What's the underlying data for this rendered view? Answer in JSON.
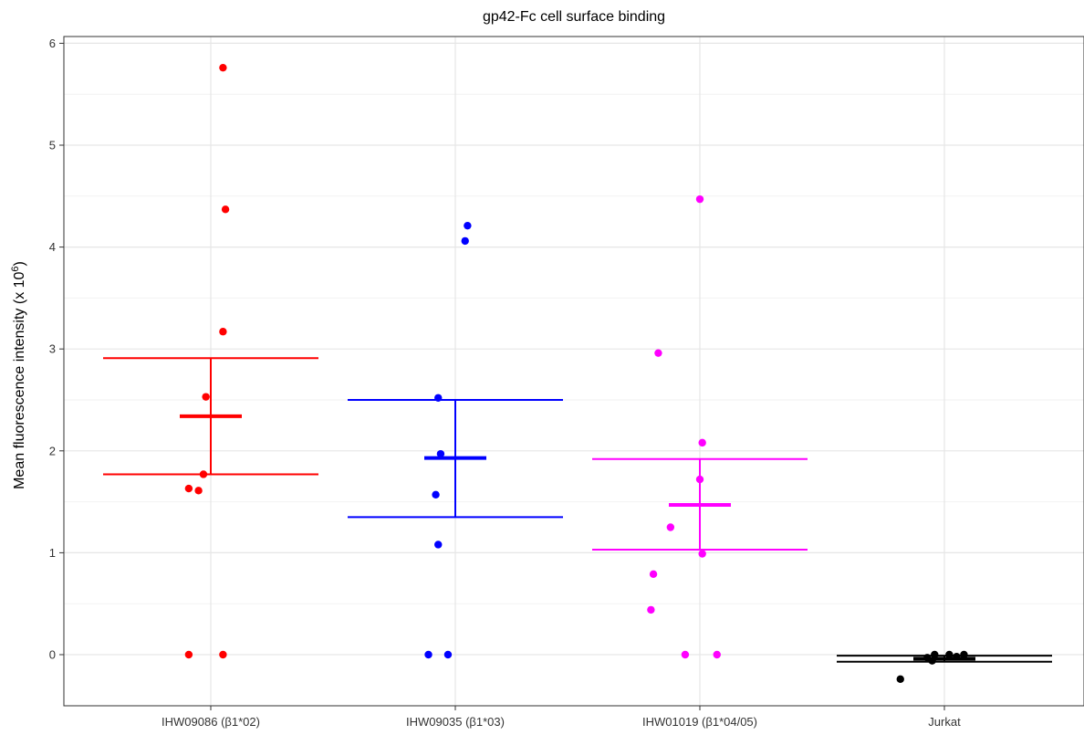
{
  "chart_data": {
    "type": "scatter",
    "title": "gp42-Fc cell surface binding",
    "xlabel": "",
    "ylabel_main": "Mean fluorescence intensity (x 10",
    "ylabel_sup": "6",
    "ylabel_close": ")",
    "ylim": [
      -0.5,
      6.1
    ],
    "yticks": [
      "0",
      "1",
      "2",
      "3",
      "4",
      "5",
      "6"
    ],
    "grid": true,
    "categories": [
      "IHW09086 (β1*02)",
      "IHW09035 (β1*03)",
      "IHW01019 (β1*04/05)",
      "Jurkat"
    ],
    "series": [
      {
        "color": "#ff0000",
        "points": [
          {
            "jitter": 0.05,
            "y": 5.76
          },
          {
            "jitter": 0.06,
            "y": 4.37
          },
          {
            "jitter": 0.05,
            "y": 3.17
          },
          {
            "jitter": -0.02,
            "y": 2.53
          },
          {
            "jitter": -0.03,
            "y": 1.77
          },
          {
            "jitter": -0.09,
            "y": 1.63
          },
          {
            "jitter": -0.05,
            "y": 1.61
          },
          {
            "jitter": -0.09,
            "y": 0.0
          },
          {
            "jitter": 0.05,
            "y": 0.0
          }
        ],
        "mean": 2.34,
        "lower": 1.77,
        "upper": 2.91
      },
      {
        "color": "#0000ff",
        "points": [
          {
            "jitter": 0.05,
            "y": 4.21
          },
          {
            "jitter": 0.04,
            "y": 4.06
          },
          {
            "jitter": -0.07,
            "y": 2.52
          },
          {
            "jitter": -0.06,
            "y": 1.97
          },
          {
            "jitter": -0.08,
            "y": 1.57
          },
          {
            "jitter": -0.07,
            "y": 1.08
          },
          {
            "jitter": -0.11,
            "y": 0.0
          },
          {
            "jitter": -0.03,
            "y": 0.0
          }
        ],
        "mean": 1.93,
        "lower": 1.35,
        "upper": 2.5
      },
      {
        "color": "#ff00ff",
        "points": [
          {
            "jitter": 0.0,
            "y": 4.47
          },
          {
            "jitter": -0.17,
            "y": 2.96
          },
          {
            "jitter": 0.01,
            "y": 2.08
          },
          {
            "jitter": 0.0,
            "y": 1.72
          },
          {
            "jitter": -0.12,
            "y": 1.25
          },
          {
            "jitter": 0.01,
            "y": 0.99
          },
          {
            "jitter": -0.19,
            "y": 0.79
          },
          {
            "jitter": -0.2,
            "y": 0.44
          },
          {
            "jitter": -0.06,
            "y": 0.0
          },
          {
            "jitter": 0.07,
            "y": 0.0
          }
        ],
        "mean": 1.47,
        "lower": 1.03,
        "upper": 1.92
      },
      {
        "color": "#000000",
        "points": [
          {
            "jitter": -0.07,
            "y": -0.03
          },
          {
            "jitter": -0.04,
            "y": 0.0
          },
          {
            "jitter": 0.02,
            "y": 0.0
          },
          {
            "jitter": 0.08,
            "y": 0.0
          },
          {
            "jitter": 0.05,
            "y": -0.02
          },
          {
            "jitter": -0.05,
            "y": -0.06
          },
          {
            "jitter": -0.18,
            "y": -0.24
          }
        ],
        "mean": -0.04,
        "lower": -0.07,
        "upper": -0.01
      }
    ]
  }
}
